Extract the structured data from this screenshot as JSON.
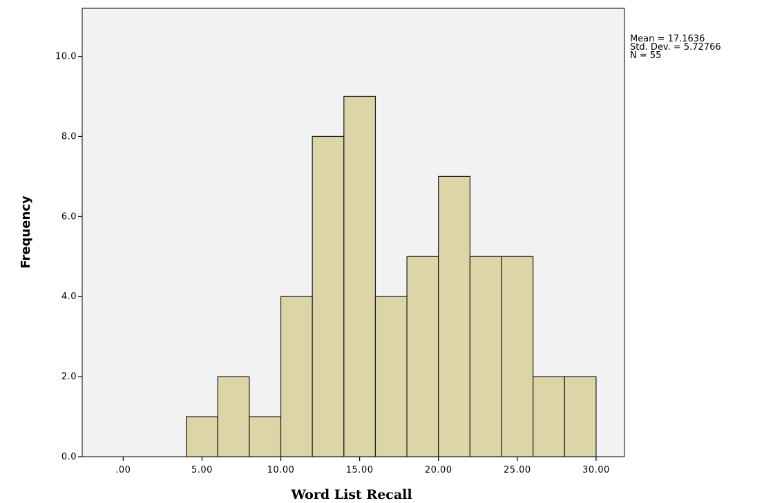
{
  "chart_data": {
    "type": "bar",
    "subtype": "histogram",
    "xlabel": "Word List Recall",
    "ylabel": "Frequency",
    "bins": [
      {
        "from": 4,
        "to": 6,
        "count": 1
      },
      {
        "from": 6,
        "to": 8,
        "count": 2
      },
      {
        "from": 8,
        "to": 10,
        "count": 1
      },
      {
        "from": 10,
        "to": 12,
        "count": 4
      },
      {
        "from": 12,
        "to": 14,
        "count": 8
      },
      {
        "from": 14,
        "to": 16,
        "count": 9
      },
      {
        "from": 16,
        "to": 18,
        "count": 4
      },
      {
        "from": 18,
        "to": 20,
        "count": 5
      },
      {
        "from": 20,
        "to": 22,
        "count": 7
      },
      {
        "from": 22,
        "to": 24,
        "count": 5
      },
      {
        "from": 24,
        "to": 26,
        "count": 5
      },
      {
        "from": 26,
        "to": 28,
        "count": 2
      },
      {
        "from": 28,
        "to": 30,
        "count": 2
      }
    ],
    "xlim": [
      -2.6,
      31.8
    ],
    "ylim": [
      0,
      11.2
    ],
    "x_ticks": [
      {
        "value": 0,
        "label": ".00"
      },
      {
        "value": 5,
        "label": "5.00"
      },
      {
        "value": 10,
        "label": "10.00"
      },
      {
        "value": 15,
        "label": "15.00"
      },
      {
        "value": 20,
        "label": "20.00"
      },
      {
        "value": 25,
        "label": "25.00"
      },
      {
        "value": 30,
        "label": "30.00"
      }
    ],
    "y_ticks": [
      {
        "value": 0,
        "label": "0.0"
      },
      {
        "value": 2,
        "label": "2.0"
      },
      {
        "value": 4,
        "label": "4.0"
      },
      {
        "value": 6,
        "label": "6.0"
      },
      {
        "value": 8,
        "label": "8.0"
      },
      {
        "value": 10,
        "label": "10.0"
      }
    ],
    "stats": {
      "mean": "Mean = 17.1636",
      "std_dev": "Std. Dev. = 5.72766",
      "n": "N = 55"
    },
    "legend_placement": "top-right, outside plot",
    "grid": false,
    "colors": {
      "bar_fill": "#dcd6a6",
      "bar_stroke": "#1a1a1a",
      "plot_background": "#f2f2f2",
      "page_background": "#ffffff",
      "axis": "#000000"
    }
  }
}
